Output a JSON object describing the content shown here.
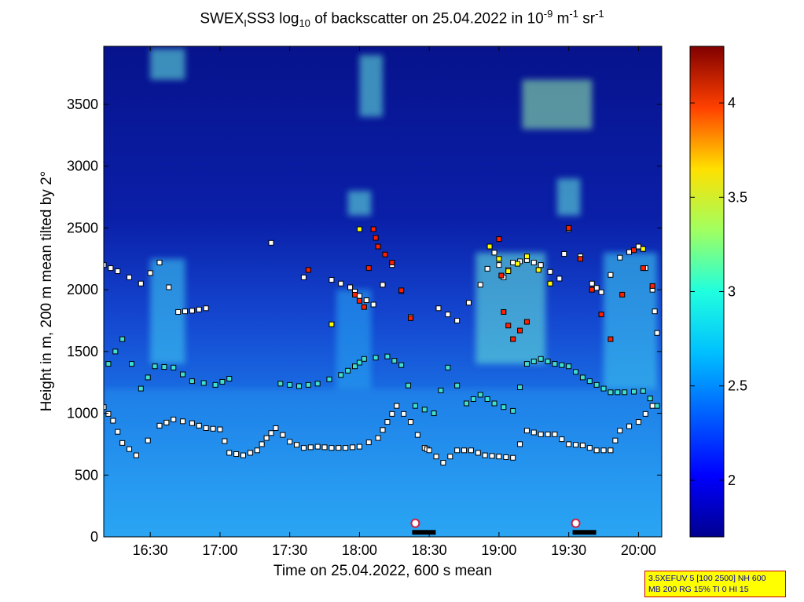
{
  "title": {
    "part1": "SWEX",
    "sub1": "I",
    "part2": "SS3 log",
    "sub2": "10",
    "part3": " of backscatter on 25.04.2022 in 10",
    "sup1": "-9",
    "part4": " m",
    "sup2": "-1",
    "part5": " sr",
    "sup3": "-1"
  },
  "xlabel": "Time on 25.04.2022, 600 s mean",
  "ylabel": "Height in m, 200 m mean tilted by 2°",
  "info": {
    "line1": "3.5XEFUV 5 [100 2500] NH 600",
    "line2": "MB 200 RG 15% TI 0 HI 15"
  },
  "colors": {
    "background_low": "#0a1a9a",
    "background_mid": "#1a73e8",
    "background_high": "#3fb2f5",
    "plume": "#48e0e0",
    "colormap": [
      "#00008f",
      "#0000ff",
      "#0080ff",
      "#00ffff",
      "#80ff80",
      "#ffff00",
      "#ff8000",
      "#ff0000",
      "#800000"
    ]
  },
  "chart_data": {
    "type": "heatmap",
    "x_axis": {
      "range": [
        "16:10",
        "20:10"
      ],
      "ticks": [
        "16:30",
        "17:00",
        "17:30",
        "18:00",
        "18:30",
        "19:00",
        "19:30",
        "20:00"
      ]
    },
    "y_axis": {
      "range": [
        0,
        3970
      ],
      "ticks": [
        0,
        500,
        1000,
        1500,
        2000,
        2500,
        3000,
        3500
      ]
    },
    "colorbar": {
      "range": [
        1.7,
        4.3
      ],
      "ticks": [
        2,
        2.5,
        3,
        3.5,
        4
      ],
      "colormap": "jet"
    },
    "layer_markers": {
      "description_colors": {
        "low": "#40e0d0",
        "mid": "#ffffff",
        "high": "#ff2000",
        "peak": "#ffff00"
      },
      "tracks": [
        {
          "name": "",
          "level": "mid",
          "points": [
            [
              "16:10",
              1050
            ],
            [
              "16:14",
              940
            ],
            [
              "16:18",
              760
            ],
            [
              "16:24",
              660
            ],
            [
              "16:34",
              900
            ],
            [
              "16:40",
              950
            ],
            [
              "16:48",
              920
            ],
            [
              "16:54",
              880
            ],
            [
              "17:00",
              870
            ],
            [
              "17:04",
              680
            ],
            [
              "17:10",
              660
            ],
            [
              "17:16",
              700
            ],
            [
              "17:20",
              800
            ],
            [
              "17:24",
              880
            ],
            [
              "17:30",
              770
            ],
            [
              "17:36",
              720
            ],
            [
              "17:42",
              730
            ],
            [
              "17:48",
              720
            ],
            [
              "17:54",
              720
            ],
            [
              "18:00",
              730
            ],
            [
              "18:08",
              800
            ],
            [
              "18:12",
              930
            ],
            [
              "18:16",
              1060
            ],
            [
              "18:22",
              930
            ],
            [
              "18:28",
              720
            ],
            [
              "18:30",
              700
            ],
            [
              "18:36",
              600
            ],
            [
              "18:42",
              700
            ],
            [
              "18:48",
              700
            ],
            [
              "18:54",
              660
            ],
            [
              "19:00",
              650
            ],
            [
              "19:06",
              640
            ],
            [
              "19:12",
              860
            ],
            [
              "19:18",
              830
            ],
            [
              "19:24",
              830
            ],
            [
              "19:30",
              750
            ],
            [
              "19:36",
              740
            ],
            [
              "19:42",
              700
            ],
            [
              "19:48",
              700
            ],
            [
              "19:52",
              860
            ],
            [
              "20:00",
              930
            ],
            [
              "20:06",
              1060
            ]
          ]
        },
        {
          "name": "",
          "level": "low",
          "points": [
            [
              "16:12",
              1400
            ],
            [
              "16:18",
              1600
            ],
            [
              "16:26",
              1200
            ],
            [
              "16:32",
              1380
            ],
            [
              "16:40",
              1370
            ],
            [
              "16:48",
              1260
            ],
            [
              "16:58",
              1230
            ],
            [
              "17:04",
              1280
            ],
            [
              "17:26",
              1240
            ],
            [
              "17:34",
              1220
            ],
            [
              "17:42",
              1240
            ],
            [
              "17:52",
              1310
            ],
            [
              "17:58",
              1380
            ],
            [
              "18:02",
              1440
            ],
            [
              "18:12",
              1460
            ],
            [
              "18:18",
              1390
            ],
            [
              "18:24",
              1060
            ],
            [
              "18:32",
              1000
            ],
            [
              "18:38",
              1370
            ],
            [
              "18:46",
              1080
            ],
            [
              "18:52",
              1150
            ],
            [
              "18:58",
              1080
            ],
            [
              "19:06",
              1020
            ],
            [
              "19:12",
              1400
            ],
            [
              "19:18",
              1440
            ],
            [
              "19:24",
              1400
            ],
            [
              "19:30",
              1380
            ],
            [
              "19:36",
              1290
            ],
            [
              "19:42",
              1230
            ],
            [
              "19:48",
              1170
            ],
            [
              "19:54",
              1170
            ],
            [
              "20:02",
              1180
            ],
            [
              "20:08",
              1060
            ]
          ]
        },
        {
          "name": "",
          "level": "mid",
          "points": [
            [
              "16:10",
              2200
            ],
            [
              "16:16",
              2150
            ],
            [
              "16:26",
              2050
            ],
            [
              "16:34",
              2220
            ],
            [
              "16:42",
              1820
            ],
            [
              "16:48",
              1830
            ],
            [
              "16:54",
              1850
            ],
            [
              "17:22",
              2380
            ],
            [
              "17:36",
              2100
            ],
            [
              "17:48",
              2080
            ],
            [
              "17:56",
              2020
            ],
            [
              "18:00",
              1950
            ],
            [
              "18:06",
              1880
            ],
            [
              "18:14",
              2200
            ],
            [
              "18:22",
              1780
            ],
            [
              "18:34",
              1850
            ],
            [
              "18:42",
              1750
            ],
            [
              "18:52",
              2040
            ],
            [
              "18:58",
              2300
            ],
            [
              "19:02",
              2100
            ],
            [
              "19:06",
              2220
            ],
            [
              "19:12",
              2240
            ],
            [
              "19:18",
              2200
            ],
            [
              "19:26",
              2090
            ],
            [
              "19:30",
              2490
            ],
            [
              "19:40",
              2050
            ],
            [
              "19:44",
              1980
            ],
            [
              "19:52",
              2260
            ],
            [
              "20:00",
              2350
            ],
            [
              "20:06",
              2000
            ],
            [
              "20:08",
              1650
            ]
          ]
        },
        {
          "name": "",
          "level": "high",
          "points": [
            [
              "17:38",
              2160
            ],
            [
              "17:58",
              1960
            ],
            [
              "18:02",
              1860
            ],
            [
              "18:06",
              2490
            ],
            [
              "18:08",
              2350
            ],
            [
              "18:14",
              2220
            ],
            [
              "18:22",
              1770
            ],
            [
              "19:00",
              2410
            ],
            [
              "19:02",
              1820
            ],
            [
              "19:06",
              1600
            ],
            [
              "19:12",
              1740
            ],
            [
              "19:30",
              2500
            ],
            [
              "19:40",
              2000
            ],
            [
              "19:48",
              1600
            ],
            [
              "19:58",
              2320
            ],
            [
              "20:06",
              2030
            ]
          ]
        },
        {
          "name": "",
          "level": "peak",
          "points": [
            [
              "17:48",
              1720
            ],
            [
              "18:00",
              2490
            ],
            [
              "18:56",
              2350
            ],
            [
              "19:04",
              2150
            ],
            [
              "19:12",
              2270
            ],
            [
              "19:22",
              2050
            ],
            [
              "20:02",
              2330
            ]
          ]
        }
      ]
    },
    "plumes": [
      {
        "x": [
          "16:10",
          "20:10"
        ],
        "y": [
          0,
          1200
        ],
        "level": 2.6
      },
      {
        "x": [
          "16:30",
          "16:45"
        ],
        "y": [
          1400,
          2250
        ],
        "level": 2.7
      },
      {
        "x": [
          "17:50",
          "18:05"
        ],
        "y": [
          1200,
          2000
        ],
        "level": 2.6
      },
      {
        "x": [
          "18:50",
          "19:20"
        ],
        "y": [
          1400,
          2300
        ],
        "level": 2.8
      },
      {
        "x": [
          "19:45",
          "20:08"
        ],
        "y": [
          1200,
          2300
        ],
        "level": 2.7
      },
      {
        "x": [
          "18:00",
          "18:10"
        ],
        "y": [
          3400,
          3900
        ],
        "level": 2.9
      },
      {
        "x": [
          "19:10",
          "19:40"
        ],
        "y": [
          3300,
          3700
        ],
        "level": 3.0
      },
      {
        "x": [
          "16:30",
          "16:45"
        ],
        "y": [
          3700,
          3950
        ],
        "level": 2.9
      },
      {
        "x": [
          "17:55",
          "18:05"
        ],
        "y": [
          2600,
          2800
        ],
        "level": 2.9
      },
      {
        "x": [
          "19:25",
          "19:35"
        ],
        "y": [
          2600,
          2900
        ],
        "level": 2.8
      }
    ],
    "ground_markers": [
      {
        "x": "18:24",
        "y": 110,
        "color": "#cc2244"
      },
      {
        "x": "19:33",
        "y": 110,
        "color": "#cc2244"
      }
    ]
  }
}
